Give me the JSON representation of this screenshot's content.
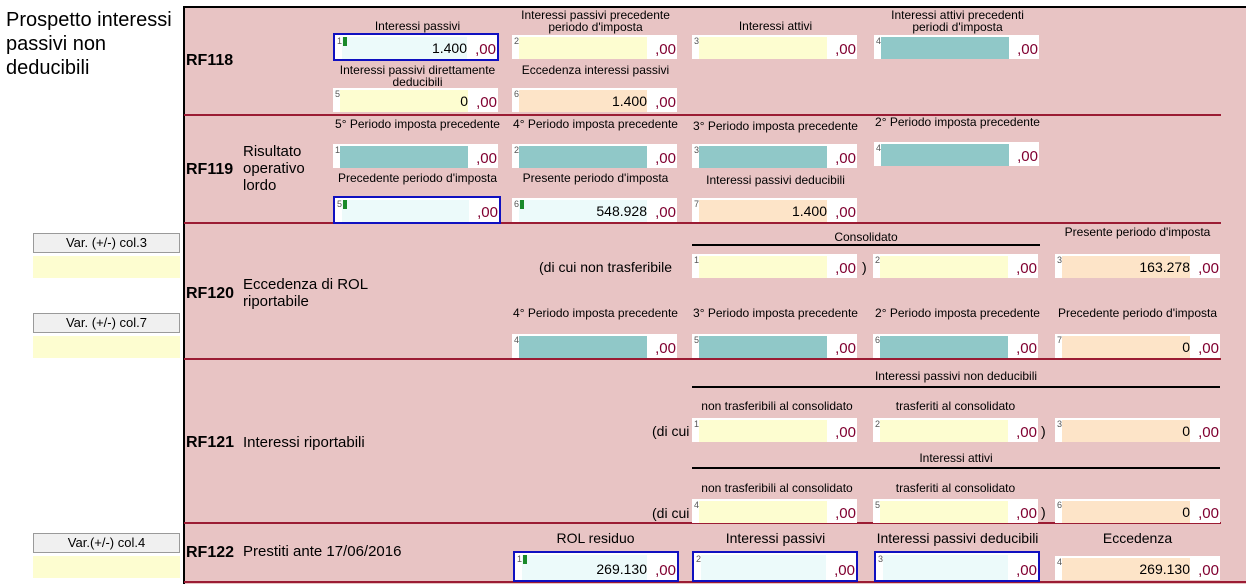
{
  "title": "Prospetto interessi passivi non deducibili",
  "left_buttons": [
    "Var. (+/-) col.3",
    "Var. (+/-) col.7",
    "Var.(+/-) col.4"
  ],
  "rf118": {
    "code": "RF118",
    "labels": [
      "Interessi passivi",
      "Interessi passivi precedente periodo d'imposta",
      "Interessi attivi",
      "Interessi attivi precedenti periodi d'imposta",
      "Interessi passivi direttamente deducibili",
      "Eccedenza interessi passivi"
    ],
    "values": [
      "1.400",
      "",
      "",
      "",
      "0",
      "1.400"
    ]
  },
  "rf119": {
    "code": "RF119",
    "desc": "Risultato operativo lordo",
    "labels": [
      "5° Periodo imposta precedente",
      "4° Periodo imposta precedente",
      "3° Periodo imposta precedente",
      "2° Periodo imposta precedente",
      "Precedente periodo d'imposta",
      "Presente periodo d'imposta",
      "Interessi passivi deducibili"
    ],
    "values": [
      "",
      "",
      "",
      "",
      "",
      "548.928",
      "1.400"
    ]
  },
  "rf120": {
    "code": "RF120",
    "desc": "Eccedenza di ROL riportabile",
    "consolidato": "Consolidato",
    "di_cui": "(di cui non trasferibile",
    "labels": [
      "Presente periodo d'imposta",
      "4° Periodo imposta precedente",
      "3° Periodo imposta precedente",
      "2° Periodo imposta precedente",
      "Precedente periodo d'imposta"
    ],
    "values": [
      "",
      "",
      "163.278",
      "",
      "",
      "",
      "0"
    ]
  },
  "rf121": {
    "code": "RF121",
    "desc": "Interessi riportabili",
    "group1": "Interessi passivi non deducibili",
    "group2": "Interessi attivi",
    "sub_a": "non trasferibili al consolidato",
    "sub_b": "trasferiti al consolidato",
    "di_cui": "(di cui",
    "values": [
      "",
      "",
      "0",
      "",
      "",
      "0"
    ]
  },
  "rf122": {
    "code": "RF122",
    "desc": "Prestiti ante 17/06/2016",
    "labels": [
      "ROL residuo",
      "Interessi passivi",
      "Interessi passivi deducibili",
      "Eccedenza"
    ],
    "values": [
      "269.130",
      "",
      "",
      "269.130"
    ]
  },
  "cents": ",00"
}
